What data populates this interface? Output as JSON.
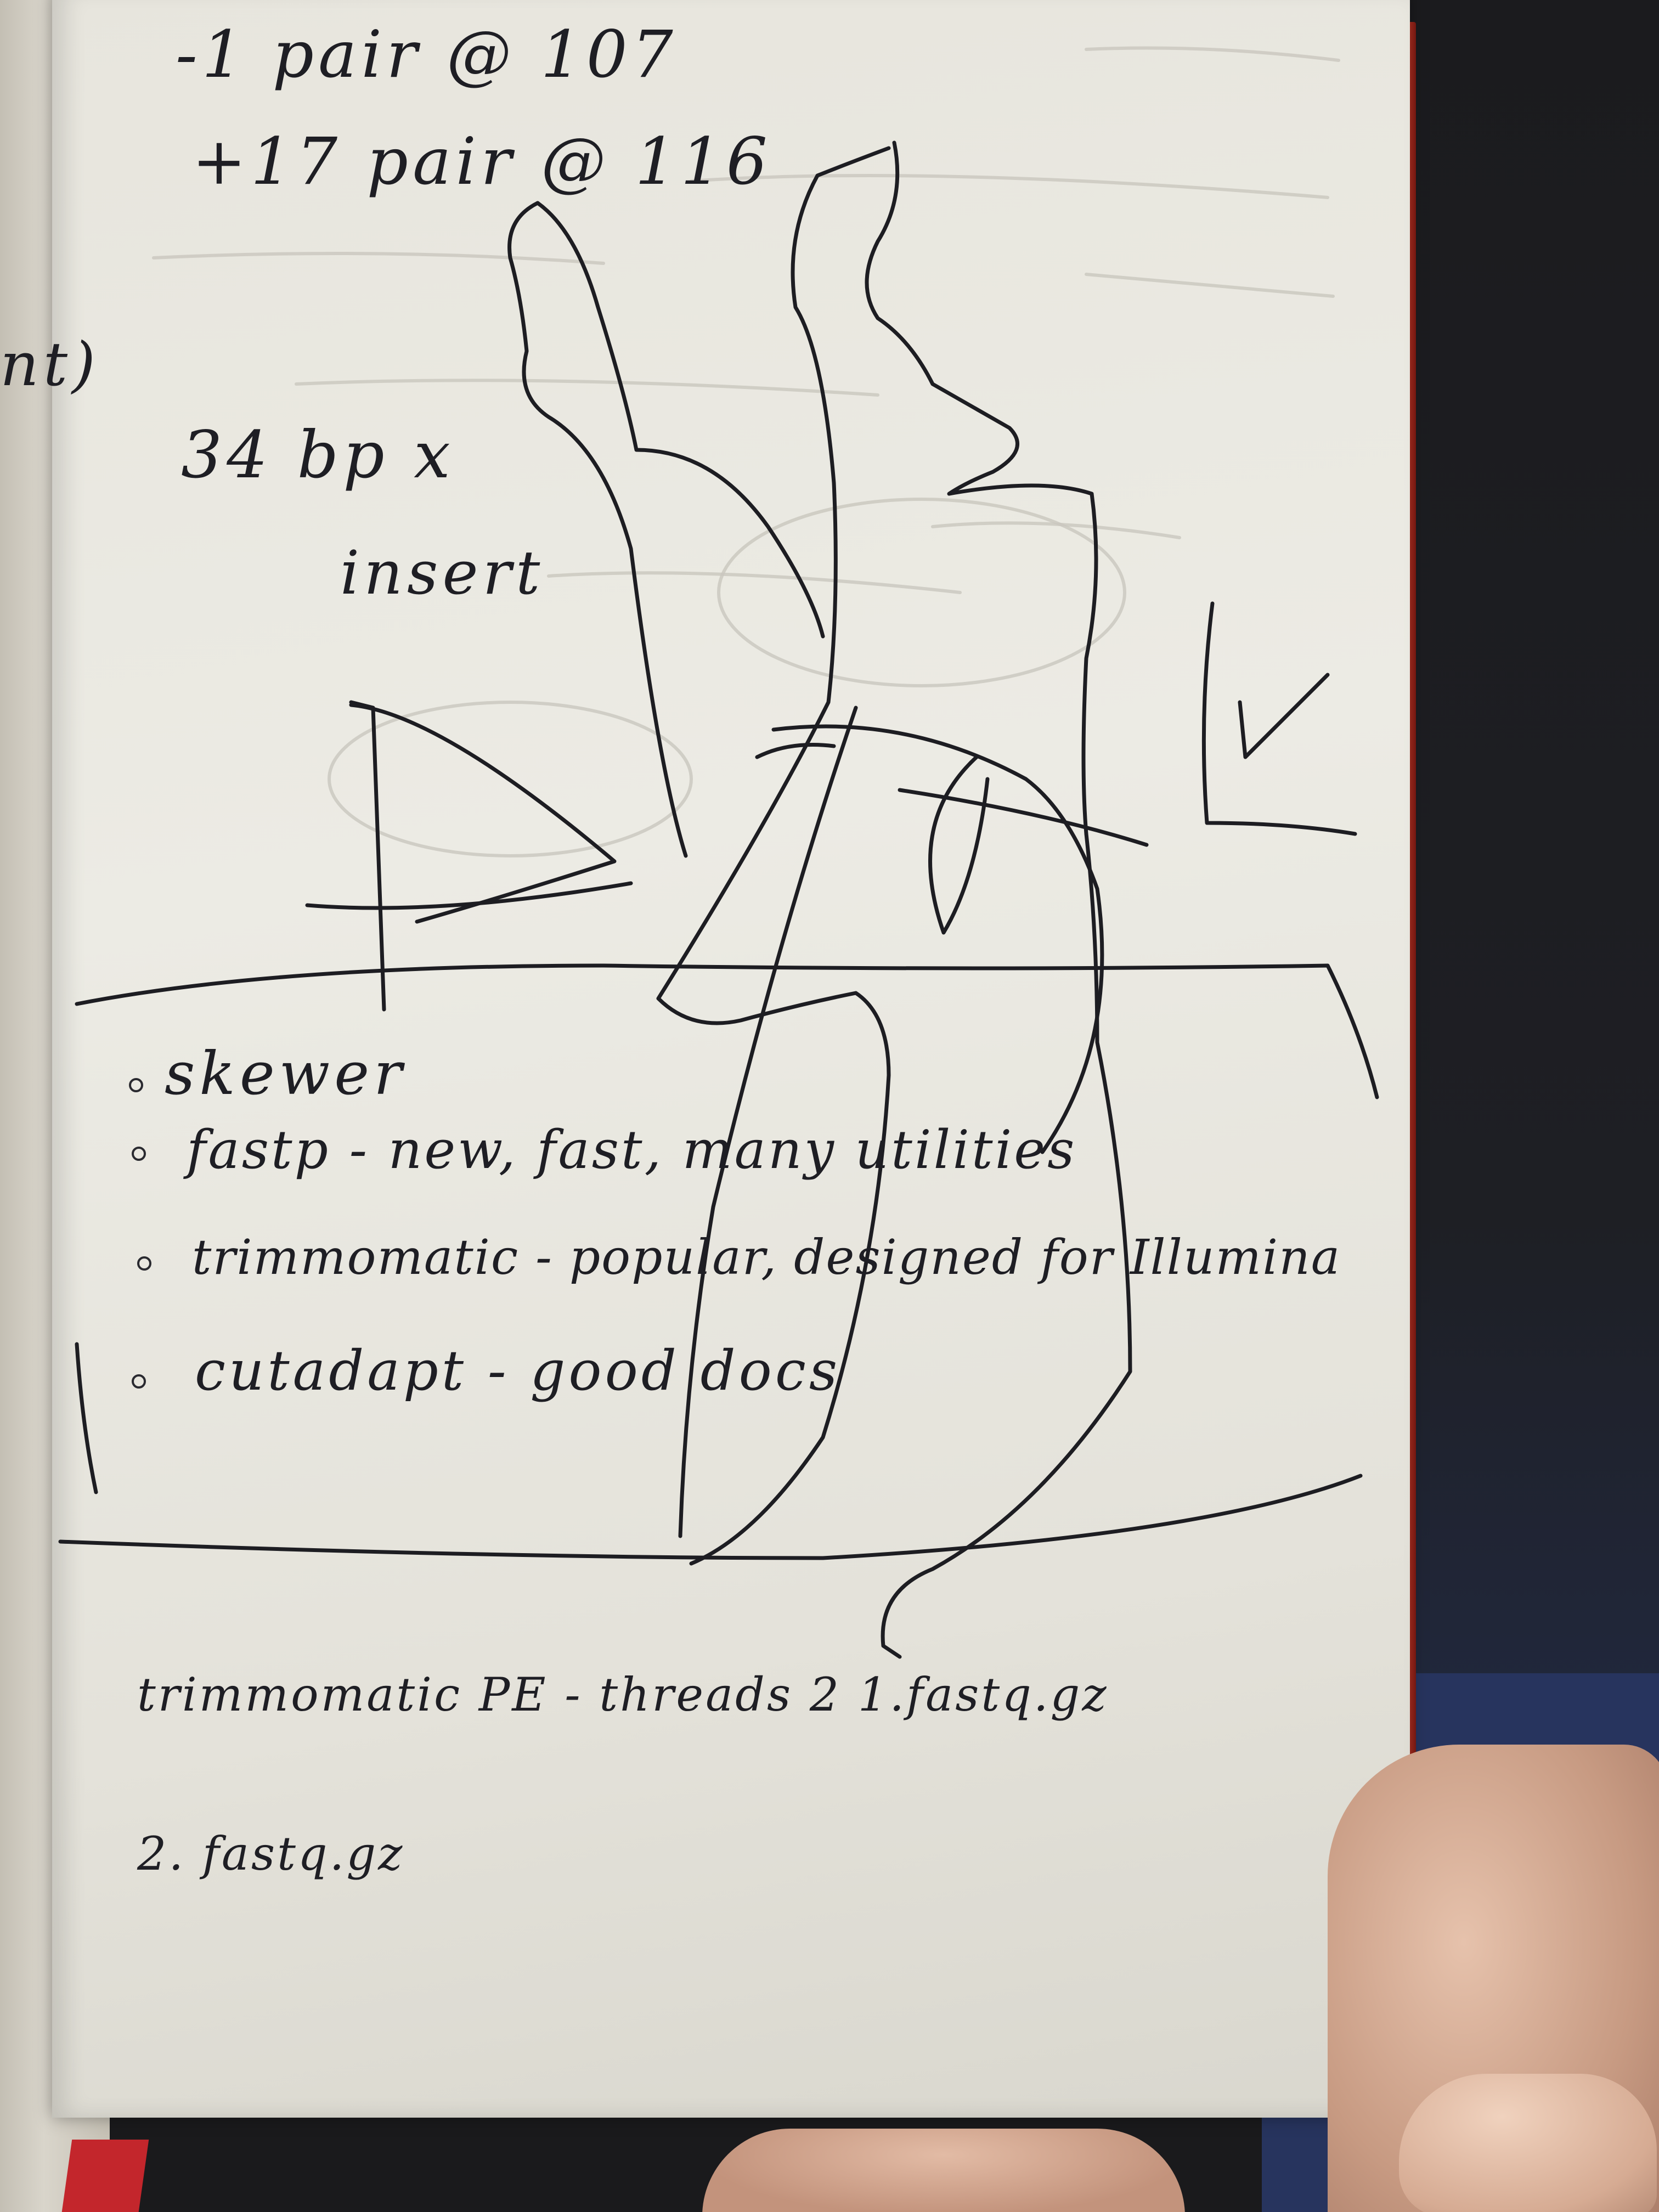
{
  "notes": {
    "top_line_1": "-1 pair @ 107",
    "top_line_2": "+17 pair @ 116",
    "insert_line_1": "34 bp x",
    "insert_line_2": "insert",
    "list": [
      "skewer",
      "fastp - new, fast, many utilities",
      "trimmomatic - popular, designed for Illumina",
      "cutadapt - good docs"
    ],
    "command_line_1": "trimmomatic PE - threads 2 1.fastq.gz",
    "command_line_2": "2. fastq.gz",
    "margin_fragment": "nt)"
  },
  "colors": {
    "paper": "#ecebe4",
    "ink": "#1d1d22",
    "cover": "#c8382a",
    "ribbon": "#c3262c"
  }
}
